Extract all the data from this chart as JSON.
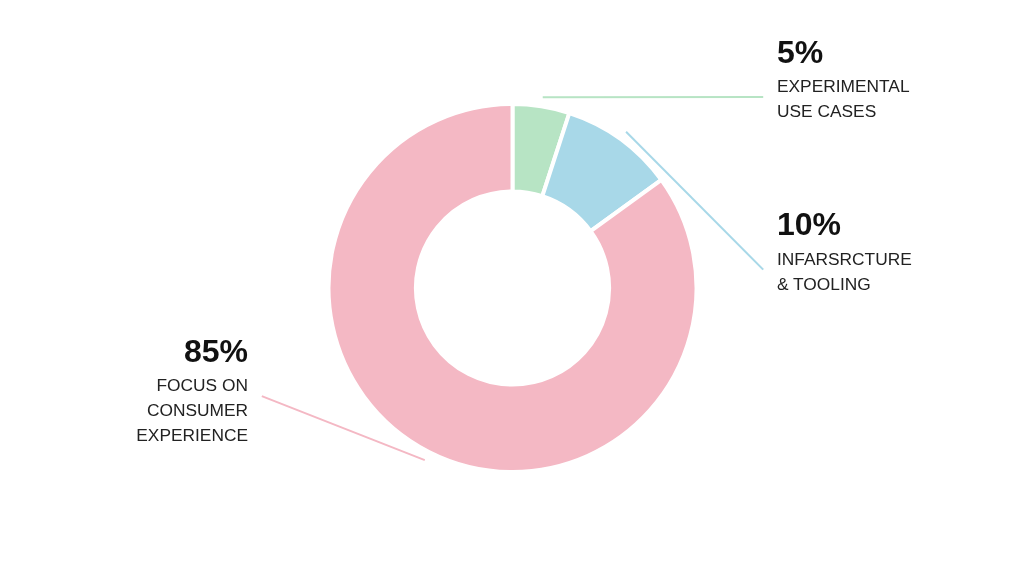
{
  "chart_data": {
    "type": "donut",
    "categories": [
      "EXPERIMENTAL\nUSE CASES",
      "INFARSRCTURE\n& TOOLING",
      "FOCUS ON\nCONSUMER\nEXPERIENCE"
    ],
    "values": [
      5,
      10,
      85
    ],
    "value_labels": [
      "5%",
      "10%",
      "85%"
    ],
    "colors": [
      "#b7e4c4",
      "#a8d8e8",
      "#f4b8c4"
    ],
    "legend": false
  }
}
